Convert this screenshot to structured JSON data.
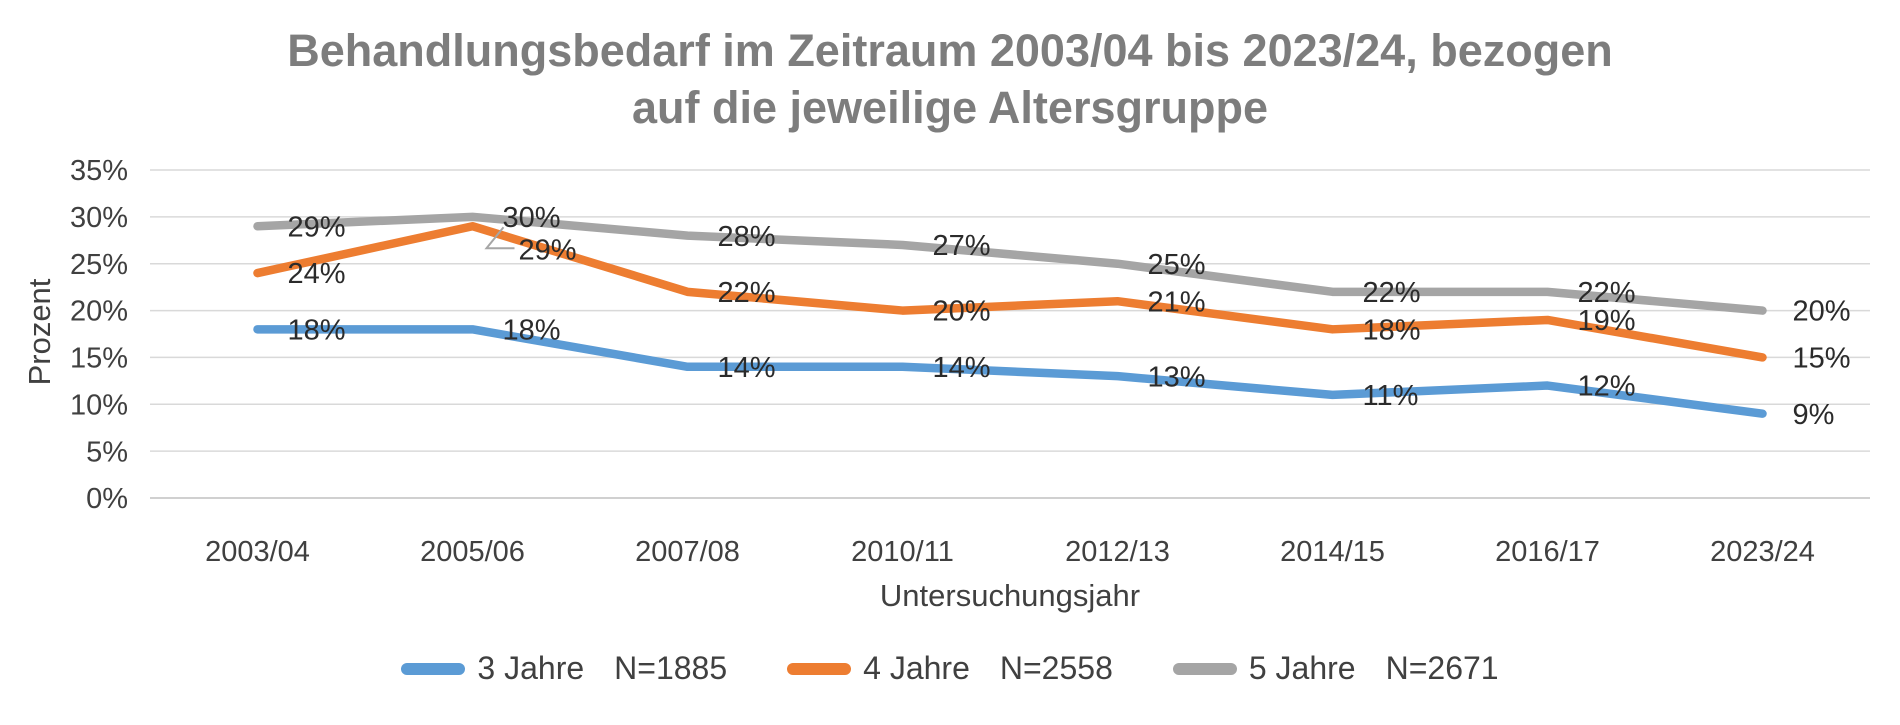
{
  "chart_data": {
    "type": "line",
    "title": "Behandlungsbedarf im Zeitraum 2003/04 bis 2023/24, bezogen auf die jeweilige Altersgruppe",
    "title_lines": [
      "Behandlungsbedarf im Zeitraum 2003/04 bis 2023/24, bezogen",
      "auf die jeweilige Altersgruppe"
    ],
    "xlabel": "Untersuchungsjahr",
    "ylabel": "Prozent",
    "categories": [
      "2003/04",
      "2005/06",
      "2007/08",
      "2010/11",
      "2012/13",
      "2014/15",
      "2016/17",
      "2023/24"
    ],
    "series": [
      {
        "name": "3 Jahre",
        "n_label": "N=1885",
        "color": "#5B9BD5",
        "values": [
          18,
          18,
          14,
          14,
          13,
          11,
          12,
          9
        ]
      },
      {
        "name": "4 Jahre",
        "n_label": "N=2558",
        "color": "#ED7D31",
        "values": [
          24,
          29,
          22,
          20,
          21,
          18,
          19,
          15
        ]
      },
      {
        "name": "5 Jahre",
        "n_label": "N=2671",
        "color": "#A5A5A5",
        "values": [
          29,
          30,
          28,
          27,
          25,
          22,
          22,
          20
        ]
      }
    ],
    "ylim": [
      0,
      35
    ],
    "ytick_step": 5,
    "tick_suffix": "%",
    "grid": true,
    "data_labels": true,
    "legend_position": "bottom",
    "label_overrides": [
      {
        "series": 1,
        "point": 1,
        "dx": 46,
        "dy": 23,
        "leader": true,
        "note": "29% label of 4 Jahre at 2005/06 shifted below with gray leader line"
      }
    ],
    "colors": {
      "title": "#7D7D7D",
      "axis_text": "#404040",
      "data_label": "#2B2B2B",
      "gridline": "#D9D9D9",
      "axis_line": "#C0C0C0",
      "leader_line": "#A6A6A6",
      "background": "#FFFFFF"
    }
  }
}
